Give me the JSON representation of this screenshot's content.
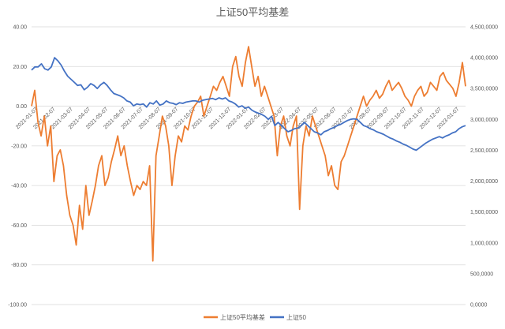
{
  "chart_data": {
    "type": "line",
    "title": "上证50平均基差",
    "left_axis": {
      "ticks": [
        "40.00",
        "20.00",
        "0.00",
        "-20.00",
        "-40.00",
        "-60.00",
        "-80.00",
        "-100.00"
      ],
      "range": [
        -100,
        40
      ]
    },
    "right_axis": {
      "ticks": [
        "4,500,0000",
        "4,000,0000",
        "3,500,0000",
        "3,000,0000",
        "2,500,0000",
        "2,000,0000",
        "1,500,0000",
        "1,000,0000",
        "500,0000",
        "0,0000"
      ],
      "range": [
        0,
        4500
      ]
    },
    "x_ticks": [
      "2021-01-07",
      "2021-02-07",
      "2021-03-07",
      "2021-04-07",
      "2021-05-07",
      "2021-06-07",
      "2021-07-07",
      "2021-08-07",
      "2021-09-07",
      "2021-10-07",
      "2021-11-07",
      "2021-12-07",
      "2022-01-07",
      "2022-02-07",
      "2022-03-07",
      "2022-04-07",
      "2022-05-07",
      "2022-06-07",
      "2022-07-07",
      "2022-08-07",
      "2022-09-07",
      "2022-10-07",
      "2022-11-07",
      "2022-12-07",
      "2023-01-07"
    ],
    "grid": true,
    "legend_position": "bottom",
    "series": [
      {
        "name": "上证50平均基差",
        "axis": "left",
        "color": "#ed7d31",
        "values": [
          0,
          8,
          -8,
          -15,
          -5,
          -20,
          -10,
          -38,
          -25,
          -22,
          -30,
          -45,
          -55,
          -60,
          -70,
          -50,
          -62,
          -40,
          -55,
          -48,
          -40,
          -30,
          -25,
          -40,
          -36,
          -28,
          -22,
          -15,
          -25,
          -20,
          -30,
          -38,
          -45,
          -40,
          -42,
          -38,
          -40,
          -30,
          -78,
          -25,
          -15,
          -5,
          -10,
          -20,
          -40,
          -25,
          -15,
          -18,
          -10,
          -12,
          -5,
          0,
          2,
          5,
          -5,
          0,
          5,
          10,
          8,
          12,
          15,
          10,
          5,
          20,
          25,
          15,
          10,
          22,
          30,
          20,
          10,
          15,
          5,
          10,
          5,
          0,
          -5,
          -25,
          -10,
          -5,
          -15,
          -20,
          -10,
          -5,
          -52,
          -20,
          -10,
          -15,
          -5,
          -10,
          -15,
          -20,
          -25,
          -35,
          -30,
          -40,
          -42,
          -28,
          -25,
          -20,
          -15,
          -10,
          -5,
          0,
          5,
          0,
          3,
          5,
          8,
          4,
          6,
          10,
          13,
          8,
          10,
          12,
          9,
          5,
          3,
          0,
          5,
          8,
          10,
          5,
          7,
          12,
          10,
          8,
          15,
          17,
          13,
          11,
          9,
          5,
          12,
          22,
          10
        ]
      },
      {
        "name": "上证50",
        "axis": "right",
        "color": "#4472c4",
        "values": [
          3800,
          3850,
          3850,
          3900,
          3820,
          3800,
          3850,
          4000,
          3950,
          3880,
          3780,
          3700,
          3650,
          3600,
          3550,
          3560,
          3480,
          3520,
          3580,
          3550,
          3500,
          3560,
          3600,
          3550,
          3480,
          3420,
          3400,
          3380,
          3350,
          3300,
          3280,
          3220,
          3250,
          3240,
          3250,
          3200,
          3270,
          3250,
          3300,
          3230,
          3250,
          3300,
          3270,
          3260,
          3240,
          3270,
          3260,
          3280,
          3290,
          3300,
          3300,
          3280,
          3310,
          3320,
          3330,
          3340,
          3320,
          3350,
          3330,
          3350,
          3300,
          3280,
          3250,
          3200,
          3220,
          3180,
          3200,
          3150,
          3120,
          3100,
          3080,
          3050,
          3000,
          3050,
          2900,
          2950,
          2900,
          2850,
          2800,
          2820,
          2850,
          2860,
          2900,
          2950,
          2900,
          2850,
          2800,
          2780,
          2750,
          2800,
          2820,
          2850,
          2870,
          2900,
          2920,
          2950,
          2980,
          3000,
          3010,
          3000,
          2950,
          2900,
          2880,
          2850,
          2830,
          2800,
          2780,
          2760,
          2730,
          2700,
          2680,
          2650,
          2630,
          2600,
          2580,
          2550,
          2520,
          2500,
          2540,
          2580,
          2620,
          2650,
          2680,
          2700,
          2720,
          2700,
          2730,
          2750,
          2780,
          2800,
          2850,
          2880,
          2900
        ]
      }
    ]
  }
}
